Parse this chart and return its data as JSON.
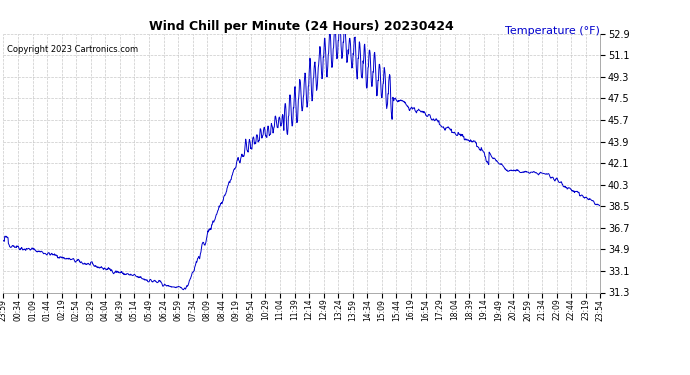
{
  "title": "Wind Chill per Minute (24 Hours) 20230424",
  "ylabel": "Temperature (°F)",
  "copyright": "Copyright 2023 Cartronics.com",
  "line_color": "#0000CC",
  "background_color": "#ffffff",
  "grid_color": "#aaaaaa",
  "ylabel_color": "#0000CC",
  "ylim": [
    31.3,
    52.9
  ],
  "yticks": [
    31.3,
    33.1,
    34.9,
    36.7,
    38.5,
    40.3,
    42.1,
    43.9,
    45.7,
    47.5,
    49.3,
    51.1,
    52.9
  ],
  "xtick_labels": [
    "23:59",
    "00:34",
    "01:09",
    "01:44",
    "02:19",
    "02:54",
    "03:29",
    "04:04",
    "04:39",
    "05:14",
    "05:49",
    "06:24",
    "06:59",
    "07:34",
    "08:09",
    "08:44",
    "09:19",
    "09:54",
    "10:29",
    "11:04",
    "11:39",
    "12:14",
    "12:49",
    "13:24",
    "13:59",
    "14:34",
    "15:09",
    "15:44",
    "16:19",
    "16:54",
    "17:29",
    "18:04",
    "18:39",
    "19:14",
    "19:49",
    "20:24",
    "20:59",
    "21:34",
    "22:09",
    "22:44",
    "23:19",
    "23:54"
  ],
  "num_points": 1440
}
